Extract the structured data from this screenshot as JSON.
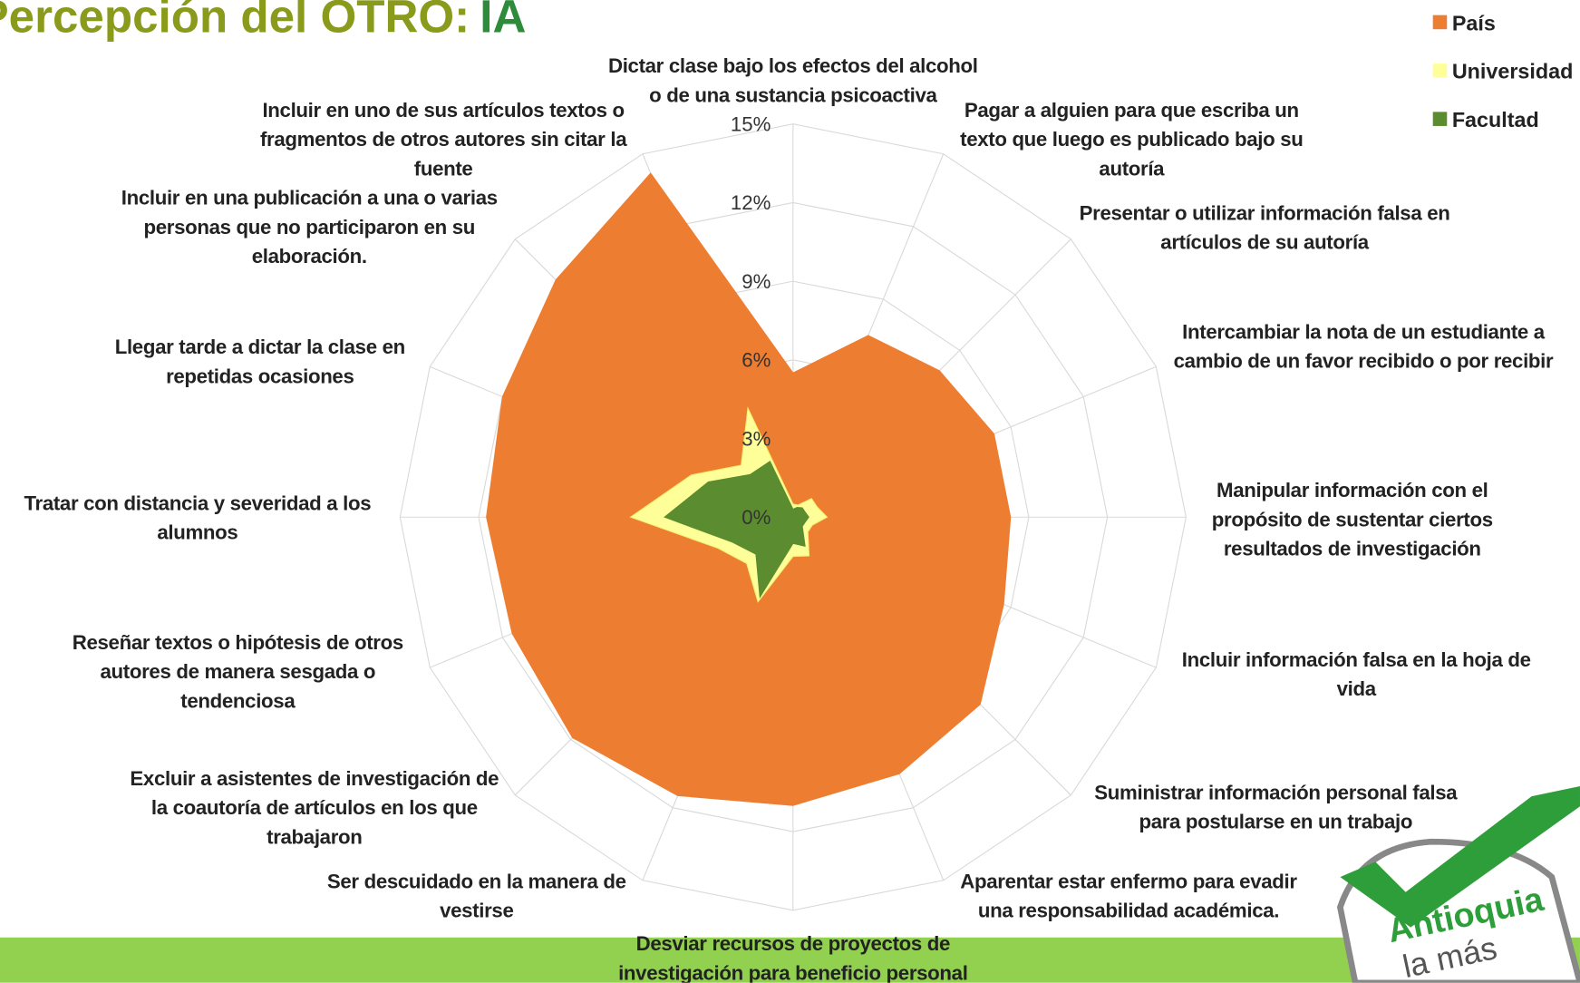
{
  "chart_data": {
    "type": "radar",
    "title": "Percepción del OTRO:",
    "title_accent": "IA",
    "categories": [
      "Dictar clase bajo los efectos del alcohol o de una sustancia psicoactiva",
      "Pagar a alguien para que escriba un texto que luego es publicado bajo su autoría",
      "Presentar o utilizar información falsa en artículos de su autoría",
      "Intercambiar la nota de un estudiante a cambio de un favor recibido o por recibir",
      "Manipular información con el propósito de sustentar ciertos resultados de investigación",
      "Incluir información falsa en la hoja de vida",
      "Suministrar información personal falsa para postularse en un trabajo",
      "Aparentar estar enfermo para evadir una responsabilidad académica.",
      "Desviar recursos de proyectos de investigación para beneficio personal",
      "Ser descuidado en la manera de vestirse",
      "Excluir a asistentes de investigación de la coautoría de artículos en los que trabajaron",
      "Reseñar textos o hipótesis de otros autores de manera sesgada o tendenciosa",
      "Tratar con distancia y severidad a los alumnos",
      "Llegar tarde a dictar la clase en repetidas ocasiones",
      "Incluir en una publicación a una o varias personas que no participaron en su elaboración.",
      "Incluir en uno de sus artículos textos o fragmentos de otros autores sin citar la fuente"
    ],
    "series": [
      {
        "name": "País",
        "color": "#ed7d31",
        "values": [
          5.5,
          7.5,
          7.9,
          8.3,
          8.3,
          8.7,
          10.1,
          10.6,
          11.0,
          11.5,
          11.9,
          11.6,
          11.7,
          12.0,
          12.8,
          14.2
        ]
      },
      {
        "name": "Universidad",
        "color": "#ffff99",
        "values": [
          0.5,
          0.5,
          1.0,
          1.0,
          1.3,
          0.8,
          0.8,
          1.6,
          1.5,
          3.5,
          2.5,
          3.1,
          6.2,
          4.2,
          2.8,
          4.5
        ]
      },
      {
        "name": "Facultad",
        "color": "#5b8c2f",
        "values": [
          0.3,
          0.4,
          0.5,
          0.5,
          0.6,
          0.5,
          0.5,
          1.2,
          1.0,
          3.3,
          2.0,
          2.5,
          4.9,
          3.5,
          2.3,
          2.3
        ]
      }
    ],
    "ylim": [
      0,
      15
    ],
    "yticks": [
      {
        "value": 0,
        "label": "0%"
      },
      {
        "value": 3,
        "label": "3%"
      },
      {
        "value": 6,
        "label": "6%"
      },
      {
        "value": 9,
        "label": "9%"
      },
      {
        "value": 12,
        "label": "12%"
      },
      {
        "value": 15,
        "label": "15%"
      }
    ],
    "grid": true,
    "legend": "top-right",
    "logo_text": [
      "Antioquia",
      "la más"
    ]
  }
}
